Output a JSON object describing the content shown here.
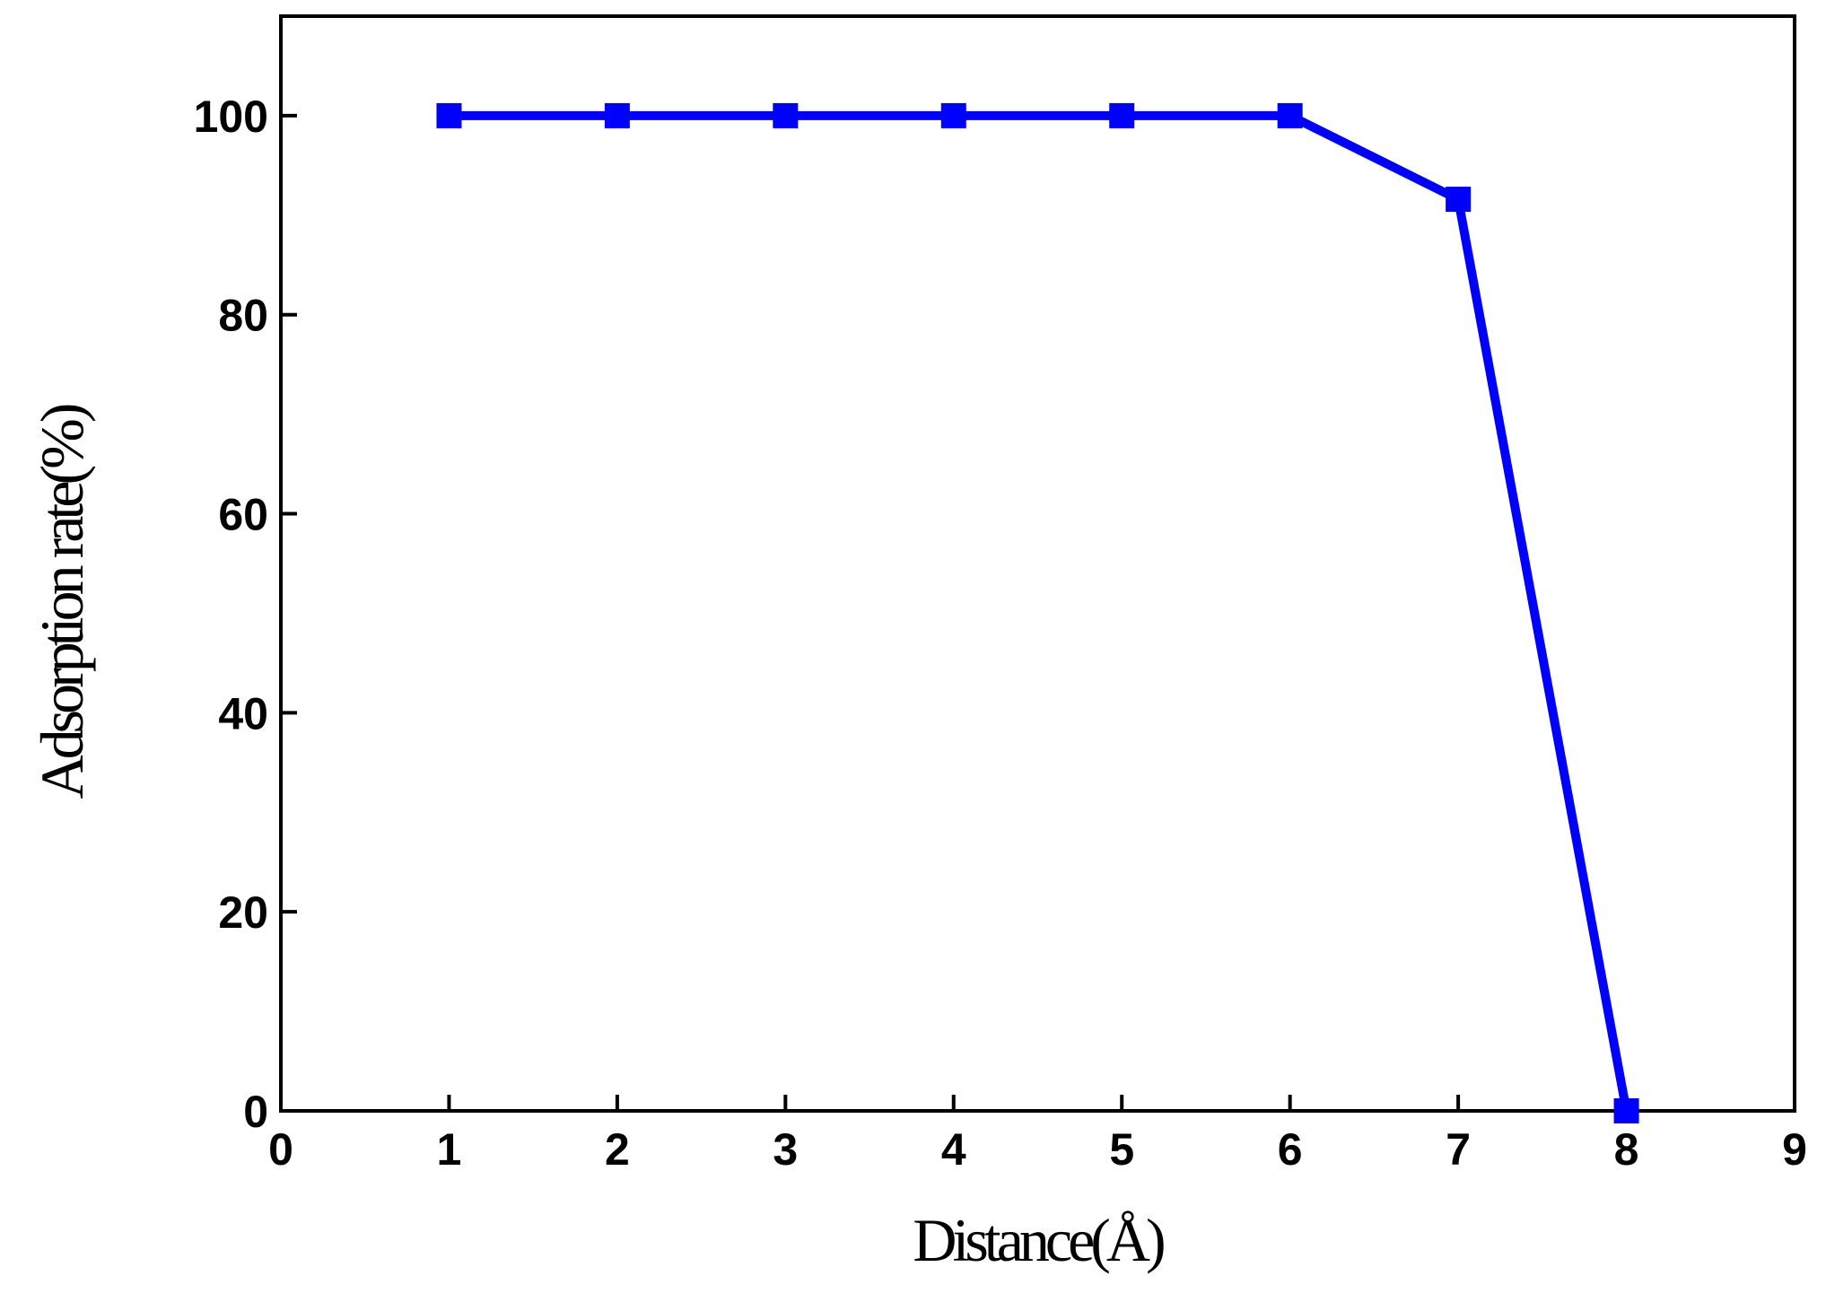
{
  "chart_data": {
    "type": "line",
    "x_label": "Distance(Å)",
    "y_label": "Adsorption rate(%)",
    "x": [
      1,
      2,
      3,
      4,
      5,
      6,
      7,
      8
    ],
    "series": [
      {
        "name": "Adsorption rate",
        "color": "#0000ff",
        "values": [
          100,
          100,
          100,
          100,
          100,
          100,
          91.6,
          0
        ]
      }
    ],
    "xlim": [
      0,
      9
    ],
    "xticks": [
      0,
      1,
      2,
      3,
      4,
      5,
      6,
      7,
      8,
      9
    ],
    "ylim": [
      0,
      110
    ],
    "yticks": [
      0,
      20,
      40,
      60,
      80,
      100
    ],
    "grid": false,
    "legend": false
  }
}
